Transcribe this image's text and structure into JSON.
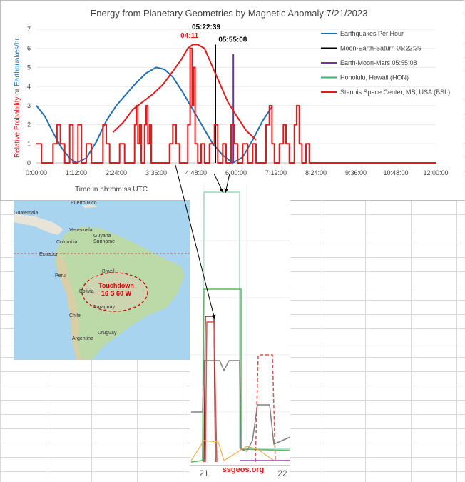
{
  "chart_data": {
    "type": "line",
    "title": "Energy from Planetary Geometries by Magnetic Anomaly 7/21/2023",
    "xlabel": "Time in  hh:mm:ss UTC",
    "ylabel_part1": "Relative Probability",
    "ylabel_part2": " or ",
    "ylabel_part3": "Earthquakes/hr.",
    "x_ticks": [
      "0:00:00",
      "1:12:00",
      "2:24:00",
      "3:36:00",
      "4:48:00",
      "6:00:00",
      "7:12:00",
      "8:24:00",
      "9:36:00",
      "10:48:00",
      "12:00:00"
    ],
    "y_ticks": [
      "0",
      "1",
      "2",
      "3",
      "4",
      "5",
      "6",
      "7"
    ],
    "xlim_hours": [
      0,
      12
    ],
    "ylim": [
      0,
      7
    ],
    "legend_position": "top-right",
    "series": [
      {
        "name": "Earthquakes Per Hour",
        "color": "#1f6fb5",
        "points": [
          [
            0,
            3
          ],
          [
            0.25,
            2.45
          ],
          [
            0.5,
            1.6
          ],
          [
            0.75,
            0.8
          ],
          [
            1.0,
            0.25
          ],
          [
            1.2,
            0.0
          ],
          [
            1.5,
            0.25
          ],
          [
            1.8,
            1.1
          ],
          [
            2.1,
            2.2
          ],
          [
            2.4,
            3.0
          ],
          [
            2.7,
            3.6
          ],
          [
            3.0,
            4.2
          ],
          [
            3.3,
            4.7
          ],
          [
            3.6,
            5.0
          ],
          [
            3.85,
            4.9
          ],
          [
            4.1,
            4.5
          ],
          [
            4.4,
            3.7
          ],
          [
            4.7,
            2.8
          ],
          [
            5.0,
            1.9
          ],
          [
            5.3,
            1.0
          ],
          [
            5.6,
            0.4
          ],
          [
            5.9,
            0.0
          ],
          [
            6.2,
            0.3
          ],
          [
            6.5,
            1.2
          ],
          [
            6.8,
            2.2
          ],
          [
            7.1,
            3.0
          ]
        ]
      },
      {
        "name": "Moon-Earth-Saturn 05:22:39",
        "color": "#000000",
        "points": [
          [
            5.3775,
            0
          ],
          [
            5.3775,
            6.2
          ]
        ]
      },
      {
        "name": "Earth-Moon-Mars 05:55:08",
        "color": "#7030a0",
        "points": [
          [
            5.9189,
            0
          ],
          [
            5.9189,
            5.7
          ]
        ]
      },
      {
        "name": "Honolulu, Hawaii (HON)",
        "color": "#3cb371",
        "points": []
      },
      {
        "name": "Stennis Space Center, MS, USA (BSL)",
        "color": "#e31a1c",
        "points": [
          [
            2.3,
            1.6
          ],
          [
            2.6,
            2.1
          ],
          [
            2.9,
            2.8
          ],
          [
            3.2,
            3.2
          ],
          [
            3.5,
            3.6
          ],
          [
            3.8,
            4.1
          ],
          [
            4.1,
            4.8
          ],
          [
            4.35,
            5.4
          ],
          [
            4.55,
            6.0
          ],
          [
            4.7,
            6.2
          ],
          [
            4.85,
            6.2
          ],
          [
            5.05,
            6.0
          ],
          [
            5.25,
            5.2
          ],
          [
            5.5,
            4.2
          ],
          [
            5.75,
            3.2
          ],
          [
            6.0,
            2.5
          ],
          [
            6.3,
            1.7
          ],
          [
            6.6,
            1.2
          ]
        ]
      },
      {
        "name": "",
        "color": "#e31a1c",
        "points": [
          [
            0,
            1
          ],
          [
            0.15,
            1
          ],
          [
            0.15,
            0
          ],
          [
            0.5,
            0
          ],
          [
            0.5,
            1
          ],
          [
            0.62,
            1
          ],
          [
            0.62,
            2
          ],
          [
            0.72,
            2
          ],
          [
            0.72,
            1
          ],
          [
            0.85,
            1
          ],
          [
            0.85,
            0
          ],
          [
            1.0,
            0
          ],
          [
            1.0,
            2
          ],
          [
            1.1,
            2
          ],
          [
            1.1,
            0
          ],
          [
            1.25,
            0
          ],
          [
            1.25,
            2
          ],
          [
            1.35,
            2
          ],
          [
            1.35,
            0
          ],
          [
            1.5,
            0
          ],
          [
            1.5,
            1
          ],
          [
            1.65,
            1
          ],
          [
            1.65,
            0
          ],
          [
            2.0,
            0
          ],
          [
            2.0,
            2
          ],
          [
            2.1,
            2
          ],
          [
            2.1,
            1
          ],
          [
            2.2,
            1
          ],
          [
            2.2,
            0
          ],
          [
            2.5,
            0
          ],
          [
            2.5,
            1
          ],
          [
            2.65,
            1
          ],
          [
            2.65,
            0
          ],
          [
            2.95,
            0
          ],
          [
            2.95,
            2
          ],
          [
            3.0,
            2
          ],
          [
            3.0,
            3
          ],
          [
            3.05,
            3
          ],
          [
            3.05,
            1
          ],
          [
            3.1,
            1
          ],
          [
            3.1,
            2
          ],
          [
            3.15,
            2
          ],
          [
            3.15,
            0
          ],
          [
            3.25,
            0
          ],
          [
            3.25,
            2
          ],
          [
            3.3,
            2
          ],
          [
            3.3,
            3
          ],
          [
            3.35,
            3
          ],
          [
            3.35,
            1
          ],
          [
            3.4,
            1
          ],
          [
            3.4,
            2
          ],
          [
            3.45,
            2
          ],
          [
            3.45,
            0
          ],
          [
            4.0,
            0
          ],
          [
            4.0,
            1
          ],
          [
            4.1,
            1
          ],
          [
            4.1,
            2
          ],
          [
            4.2,
            2
          ],
          [
            4.2,
            1
          ],
          [
            4.3,
            1
          ],
          [
            4.3,
            0
          ],
          [
            4.55,
            0
          ],
          [
            4.55,
            2
          ],
          [
            4.62,
            2
          ],
          [
            4.62,
            6
          ],
          [
            4.68,
            6
          ],
          [
            4.68,
            3
          ],
          [
            4.72,
            3
          ],
          [
            4.72,
            5
          ],
          [
            4.77,
            5
          ],
          [
            4.77,
            1
          ],
          [
            4.85,
            1
          ],
          [
            4.85,
            0
          ],
          [
            4.95,
            0
          ],
          [
            4.95,
            1
          ],
          [
            5.05,
            1
          ],
          [
            5.05,
            0
          ],
          [
            5.2,
            0
          ],
          [
            5.2,
            1
          ],
          [
            5.35,
            1
          ],
          [
            5.35,
            2
          ],
          [
            5.45,
            2
          ],
          [
            5.45,
            0
          ],
          [
            5.6,
            0
          ],
          [
            5.6,
            1
          ],
          [
            5.7,
            1
          ],
          [
            5.7,
            0
          ],
          [
            5.85,
            0
          ],
          [
            5.85,
            2
          ],
          [
            5.95,
            2
          ],
          [
            5.95,
            1
          ],
          [
            6.05,
            1
          ],
          [
            6.05,
            0
          ],
          [
            6.2,
            0
          ],
          [
            6.2,
            1
          ],
          [
            6.35,
            1
          ],
          [
            6.35,
            0
          ],
          [
            6.5,
            0
          ],
          [
            6.5,
            1
          ],
          [
            6.6,
            1
          ],
          [
            6.6,
            0
          ],
          [
            6.9,
            0
          ],
          [
            6.9,
            2
          ],
          [
            7.0,
            2
          ],
          [
            7.0,
            3
          ],
          [
            7.08,
            3
          ],
          [
            7.08,
            1
          ],
          [
            7.15,
            1
          ],
          [
            7.15,
            0
          ],
          [
            7.3,
            0
          ],
          [
            7.3,
            1
          ],
          [
            7.42,
            1
          ],
          [
            7.42,
            2
          ],
          [
            7.5,
            2
          ],
          [
            7.5,
            1
          ],
          [
            7.6,
            1
          ],
          [
            7.6,
            0
          ],
          [
            7.75,
            0
          ],
          [
            7.75,
            2
          ],
          [
            7.82,
            2
          ],
          [
            7.82,
            3
          ],
          [
            7.9,
            3
          ],
          [
            7.9,
            1
          ],
          [
            7.98,
            1
          ],
          [
            7.98,
            0
          ],
          [
            8.1,
            0
          ],
          [
            8.1,
            1
          ],
          [
            8.2,
            1
          ],
          [
            8.2,
            0
          ],
          [
            12,
            0
          ]
        ]
      }
    ],
    "annotations": [
      {
        "text": "04:11",
        "x_hours": 4.6,
        "y": 6.55,
        "color": "#e31a1c"
      },
      {
        "text": "05:22:39",
        "x_hours": 5.1,
        "y": 7.0,
        "color": "#000000"
      },
      {
        "text": "05:55:08",
        "x_hours": 5.9,
        "y": 6.35,
        "color": "#000000"
      }
    ]
  },
  "map": {
    "countries": [
      "Puerto Rico",
      "Guatemala",
      "Venezuela",
      "Guyana",
      "Suriname",
      "Colombia",
      "Ecuador",
      "Peru",
      "Brazil",
      "Bolivia",
      "Paraguay",
      "Chile",
      "Uruguay",
      "Argentina"
    ],
    "touchdown_label_1": "Touchdown",
    "touchdown_label_2": "16 S  60 W",
    "touchdown_color": "#cc0000"
  },
  "inset": {
    "x_labels": [
      "21",
      "22"
    ],
    "watermark": "ssgeos.org",
    "watermark_color": "#e31a1c"
  }
}
